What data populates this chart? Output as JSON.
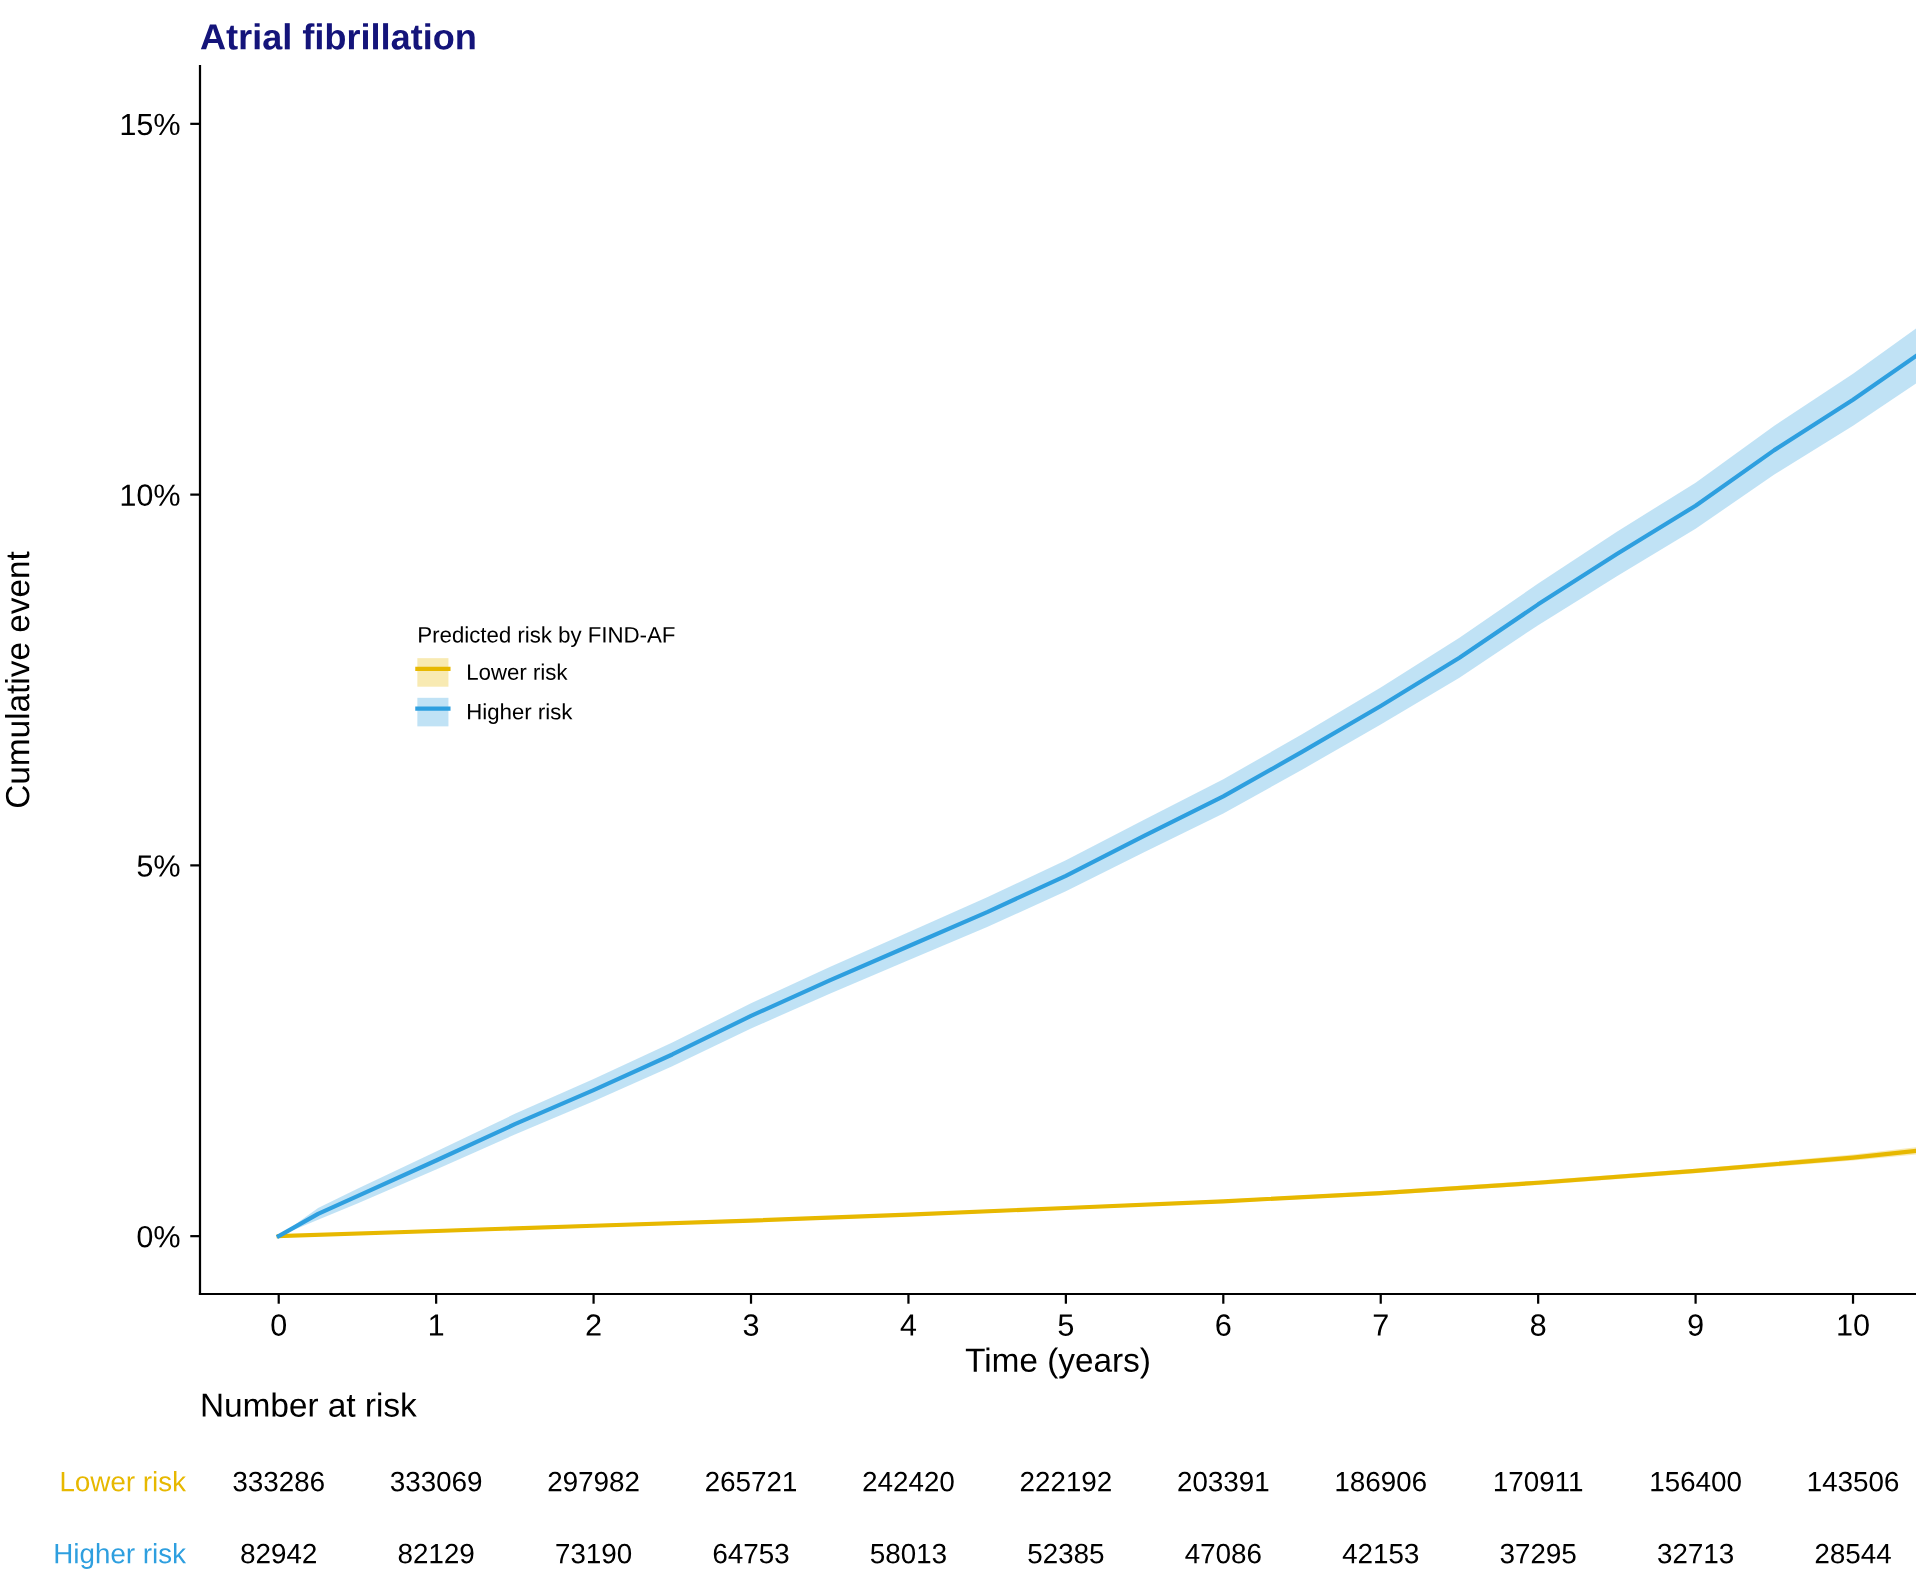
{
  "chart_data": {
    "type": "line",
    "title": "Atrial fibrillation",
    "xlabel": "Time (years)",
    "ylabel": "Cumulative event",
    "legend_title": "Predicted risk by FIND-AF",
    "xlim": [
      -0.5,
      10.4
    ],
    "xticks": [
      0,
      1,
      2,
      3,
      4,
      5,
      6,
      7,
      8,
      9,
      10
    ],
    "ylim": [
      -0.78,
      15.78
    ],
    "yticks": [
      {
        "value": 0,
        "label": "0%"
      },
      {
        "value": 5,
        "label": "5%"
      },
      {
        "value": 10,
        "label": "10%"
      },
      {
        "value": 15,
        "label": "15%"
      }
    ],
    "grid": false,
    "legend": "left",
    "series": [
      {
        "name": "Lower risk",
        "color": "#e7b800",
        "x": [
          0,
          1,
          2,
          3,
          4,
          5,
          6,
          7,
          8,
          9,
          10,
          10.4
        ],
        "values": [
          0,
          0.07,
          0.14,
          0.21,
          0.29,
          0.38,
          0.47,
          0.58,
          0.72,
          0.88,
          1.06,
          1.15
        ],
        "lower": [
          0,
          0.05,
          0.12,
          0.19,
          0.27,
          0.36,
          0.45,
          0.55,
          0.69,
          0.85,
          1.02,
          1.1
        ],
        "upper": [
          0,
          0.09,
          0.16,
          0.23,
          0.31,
          0.4,
          0.49,
          0.61,
          0.75,
          0.91,
          1.1,
          1.2
        ]
      },
      {
        "name": "Higher risk",
        "color": "#2e9fdf",
        "x": [
          0,
          0.25,
          0.5,
          1,
          1.5,
          2,
          2.5,
          3,
          3.5,
          4,
          4.5,
          5,
          5.5,
          6,
          6.5,
          7,
          7.5,
          8,
          8.5,
          9,
          9.5,
          10,
          10.4
        ],
        "values": [
          0,
          0.3,
          0.54,
          1.02,
          1.51,
          1.97,
          2.45,
          2.97,
          3.45,
          3.91,
          4.37,
          4.86,
          5.4,
          5.93,
          6.53,
          7.15,
          7.8,
          8.52,
          9.2,
          9.85,
          10.6,
          11.28,
          11.87
        ],
        "lower": [
          0,
          0.22,
          0.44,
          0.9,
          1.37,
          1.82,
          2.29,
          2.8,
          3.27,
          3.72,
          4.17,
          4.65,
          5.18,
          5.7,
          6.29,
          6.9,
          7.53,
          8.24,
          8.9,
          9.54,
          10.27,
          10.93,
          11.5
        ],
        "upper": [
          0,
          0.38,
          0.64,
          1.14,
          1.65,
          2.12,
          2.61,
          3.14,
          3.63,
          4.1,
          4.57,
          5.07,
          5.62,
          6.16,
          6.77,
          7.4,
          8.07,
          8.8,
          9.5,
          10.16,
          10.93,
          11.63,
          12.24
        ]
      }
    ],
    "annotations": [
      "Number at risk",
      "Lower risk",
      "333286 333069 297982 265721 242420 222192 203391 186906 170911 156400 143506",
      "Higher risk",
      "82942 82129 73190 64753 58013 52385 47086 42153 37295 32713 28544"
    ]
  }
}
